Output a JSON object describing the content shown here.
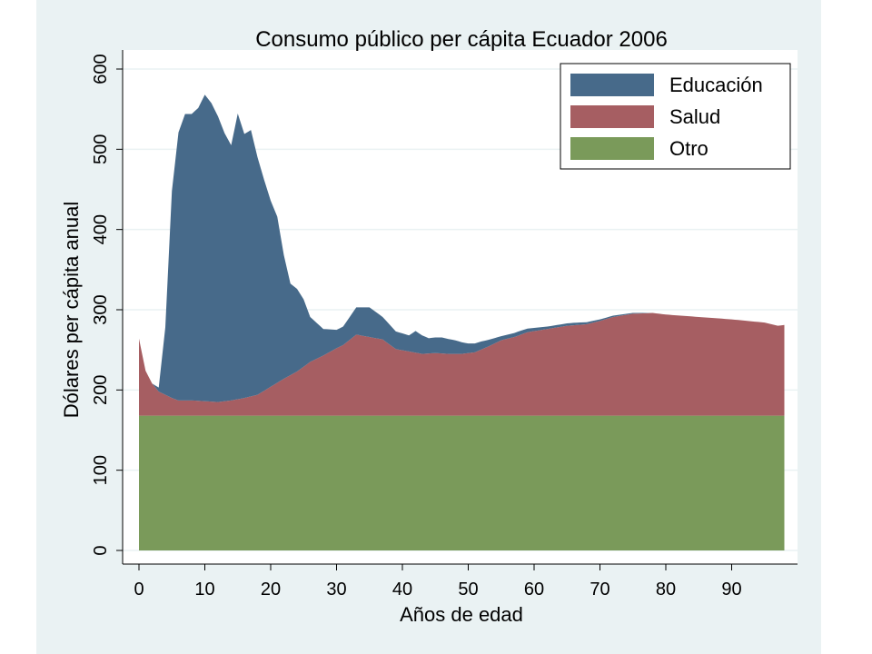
{
  "chart_data": {
    "type": "area",
    "stacked": true,
    "title": "Consumo público per cápita Ecuador 2006",
    "xlabel": "Años de edad",
    "ylabel": "Dólares per cápita anual",
    "xlim": [
      0,
      98
    ],
    "ylim": [
      0,
      600
    ],
    "xticks": [
      0,
      10,
      20,
      30,
      40,
      50,
      60,
      70,
      80,
      90
    ],
    "yticks": [
      0,
      100,
      200,
      300,
      400,
      500,
      600
    ],
    "grid": true,
    "legend_position": "top-right",
    "series": [
      {
        "name": "Otro",
        "color": "#7a9a5a",
        "x": [
          0,
          98
        ],
        "values": [
          168,
          168
        ]
      },
      {
        "name": "Salud",
        "color": "#a65e62",
        "x": [
          0,
          1,
          2,
          3,
          4,
          5,
          6,
          8,
          10,
          12,
          14,
          16,
          18,
          20,
          22,
          24,
          26,
          28,
          30,
          31,
          33,
          35,
          37,
          39,
          41,
          43,
          45,
          47,
          49,
          51,
          53,
          55,
          57,
          59,
          62,
          65,
          68,
          70,
          72,
          75,
          78,
          80,
          85,
          90,
          95,
          97,
          98
        ],
        "values": [
          96,
          56,
          40,
          30,
          26,
          22,
          19,
          19,
          18,
          17,
          19,
          22,
          26,
          36,
          46,
          55,
          67,
          75,
          84,
          88,
          101,
          98,
          95,
          83,
          80,
          77,
          78,
          77,
          77,
          79,
          86,
          94,
          98,
          104,
          108,
          112,
          114,
          118,
          123,
          127,
          128,
          126,
          123,
          120,
          116,
          112,
          113
        ]
      },
      {
        "name": "Educación",
        "color": "#476a8a",
        "x": [
          0,
          2,
          3,
          4,
          5,
          6,
          7,
          8,
          9,
          10,
          11,
          12,
          13,
          14,
          15,
          16,
          17,
          18,
          19,
          20,
          21,
          22,
          23,
          24,
          25,
          26,
          28,
          30,
          31,
          33,
          35,
          37,
          39,
          41,
          42,
          44,
          46,
          48,
          50,
          52,
          55,
          58,
          62,
          66,
          70,
          75,
          78,
          98
        ],
        "values": [
          0,
          0,
          5,
          84,
          258,
          334,
          357,
          357,
          365,
          382,
          372,
          356,
          334,
          318,
          356,
          329,
          332,
          296,
          263,
          232,
          207,
          154,
          114,
          103,
          84,
          56,
          33,
          23,
          23,
          34,
          37,
          28,
          22,
          20,
          27,
          19,
          20,
          17,
          12,
          10,
          5,
          5,
          3,
          3,
          2,
          1,
          0,
          0
        ]
      }
    ]
  }
}
